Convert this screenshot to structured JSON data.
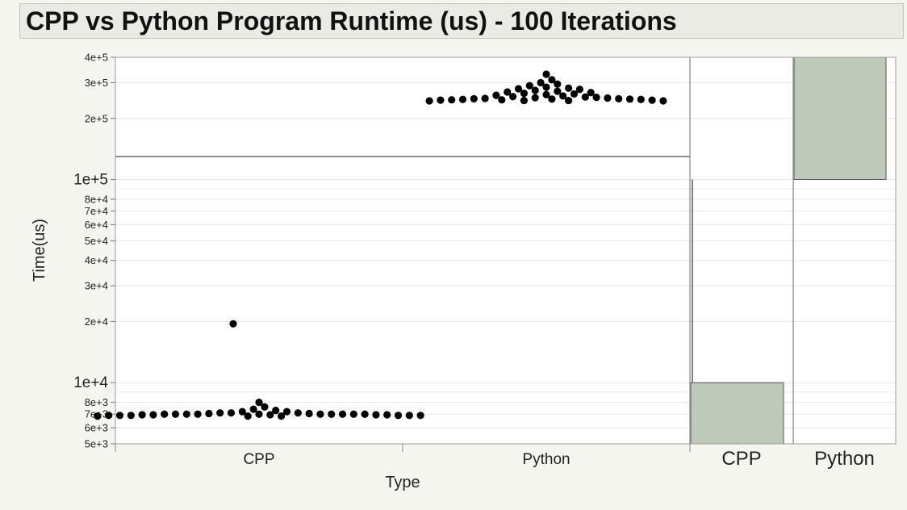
{
  "chart_data": {
    "type": "scatter",
    "title": "CPP vs Python Program Runtime (us) - 100 Iterations",
    "xlabel": "Type",
    "ylabel": "Time(us)",
    "y_scale": "log",
    "ylim": [
      5000,
      400000
    ],
    "categories": [
      "CPP",
      "Python"
    ],
    "y_ticks": [
      {
        "value": 5000,
        "label": "5e+3",
        "major": false
      },
      {
        "value": 6000,
        "label": "6e+3",
        "major": false
      },
      {
        "value": 7000,
        "label": "7e+3",
        "major": false
      },
      {
        "value": 8000,
        "label": "8e+3",
        "major": false
      },
      {
        "value": 10000,
        "label": "1e+4",
        "major": true
      },
      {
        "value": 20000,
        "label": "2e+4",
        "major": false
      },
      {
        "value": 30000,
        "label": "3e+4",
        "major": false
      },
      {
        "value": 40000,
        "label": "4e+4",
        "major": false
      },
      {
        "value": 50000,
        "label": "5e+4",
        "major": false
      },
      {
        "value": 60000,
        "label": "6e+4",
        "major": false
      },
      {
        "value": 70000,
        "label": "7e+4",
        "major": false
      },
      {
        "value": 80000,
        "label": "8e+4",
        "major": false
      },
      {
        "value": 100000,
        "label": "1e+5",
        "major": true
      },
      {
        "value": 200000,
        "label": "2e+5",
        "major": false
      },
      {
        "value": 300000,
        "label": "3e+5",
        "major": false
      },
      {
        "value": 400000,
        "label": "4e+5",
        "major": false
      }
    ],
    "minor_gridlines": [
      9000,
      90000
    ],
    "reference_line": 130000,
    "series": [
      {
        "category": "CPP",
        "values": [
          19500,
          8000,
          7600,
          7400,
          7300,
          7200,
          7200,
          7100,
          7100,
          7100,
          7050,
          7050,
          7000,
          7000,
          7000,
          7000,
          7000,
          7000,
          7000,
          7000,
          7000,
          7000,
          6950,
          6950,
          6950,
          6950,
          6950,
          6900,
          6900,
          6900,
          6900,
          6900,
          6900,
          6850,
          6850,
          6850
        ]
      },
      {
        "category": "Python",
        "values": [
          330000,
          310000,
          300000,
          295000,
          290000,
          285000,
          282000,
          280000,
          278000,
          275000,
          272000,
          270000,
          268000,
          266000,
          264000,
          262000,
          260000,
          258000,
          256000,
          255000,
          254000,
          253000,
          252000,
          251000,
          250000,
          250000,
          249000,
          249000,
          248000,
          248000,
          247000,
          247000,
          246000,
          246000,
          245000,
          245000,
          244000,
          244000
        ]
      }
    ],
    "range_panels": [
      {
        "label": "CPP",
        "low": 5000,
        "high": 10000,
        "color": "#bfc9b9"
      },
      {
        "label": "Python",
        "low": 100000,
        "high": 400000,
        "color": "#bfc9b9"
      }
    ]
  }
}
